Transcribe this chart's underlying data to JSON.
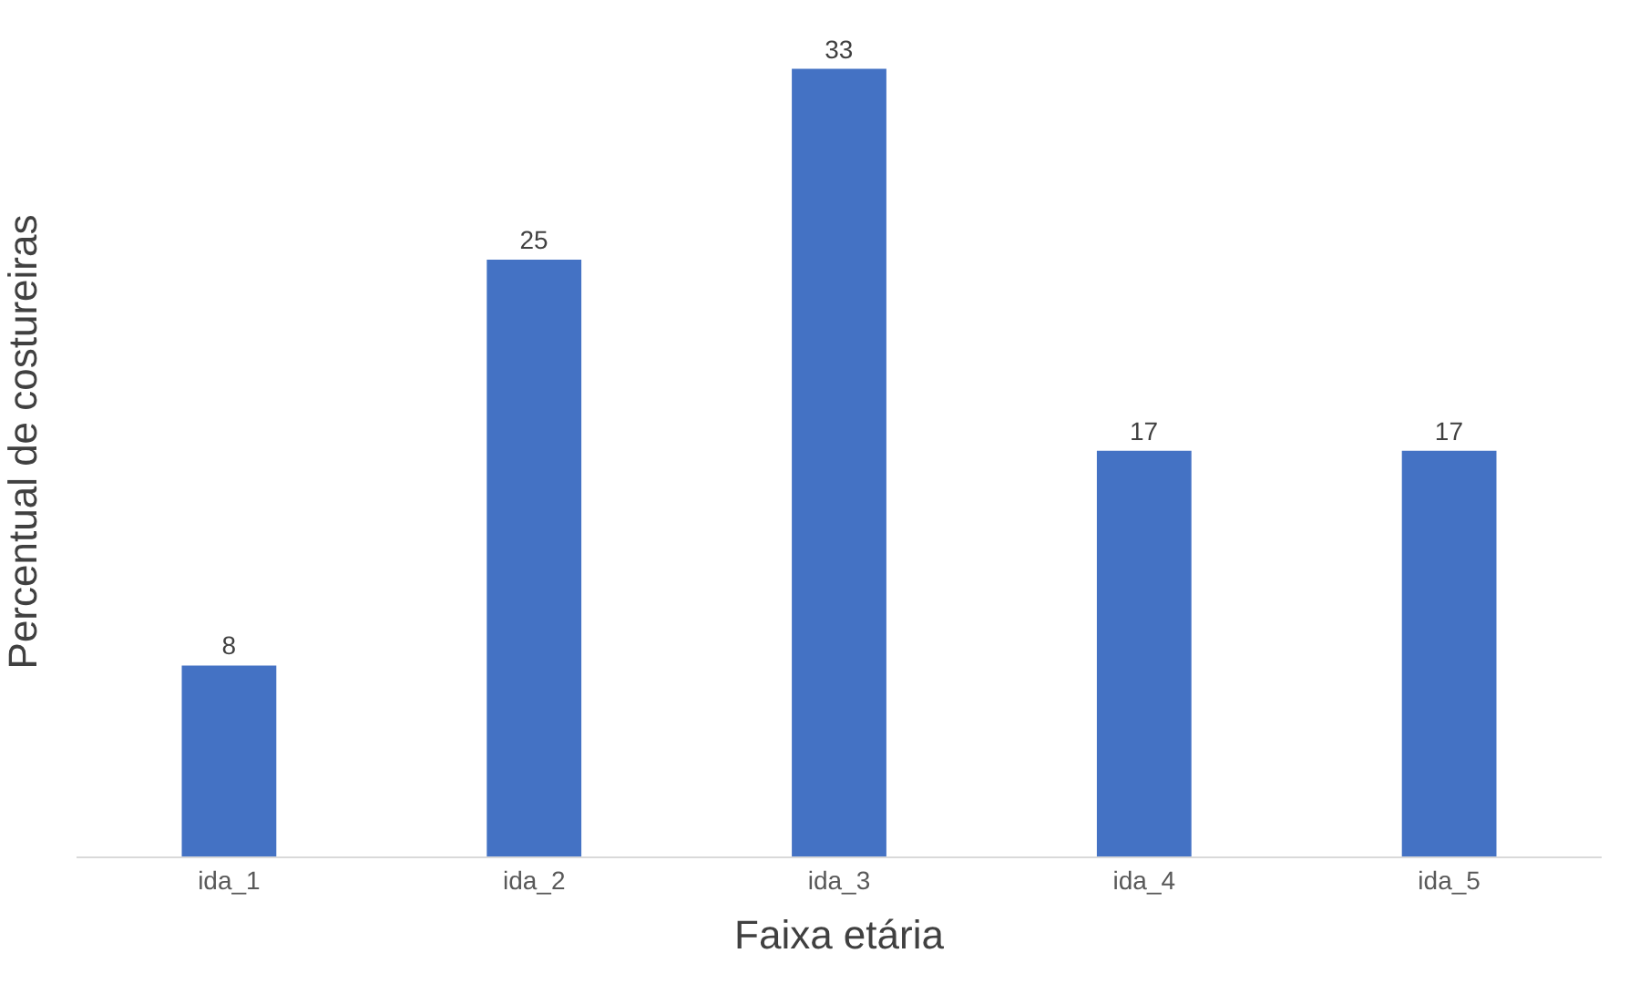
{
  "chart_data": {
    "type": "bar",
    "xlabel": "Faixa etária",
    "ylabel": "Percentual de costureiras",
    "categories": [
      "ida_1",
      "ida_2",
      "ida_3",
      "ida_4",
      "ida_5"
    ],
    "values": [
      8,
      25,
      33,
      17,
      17
    ],
    "color": "#4472c4",
    "data_labels": true
  }
}
